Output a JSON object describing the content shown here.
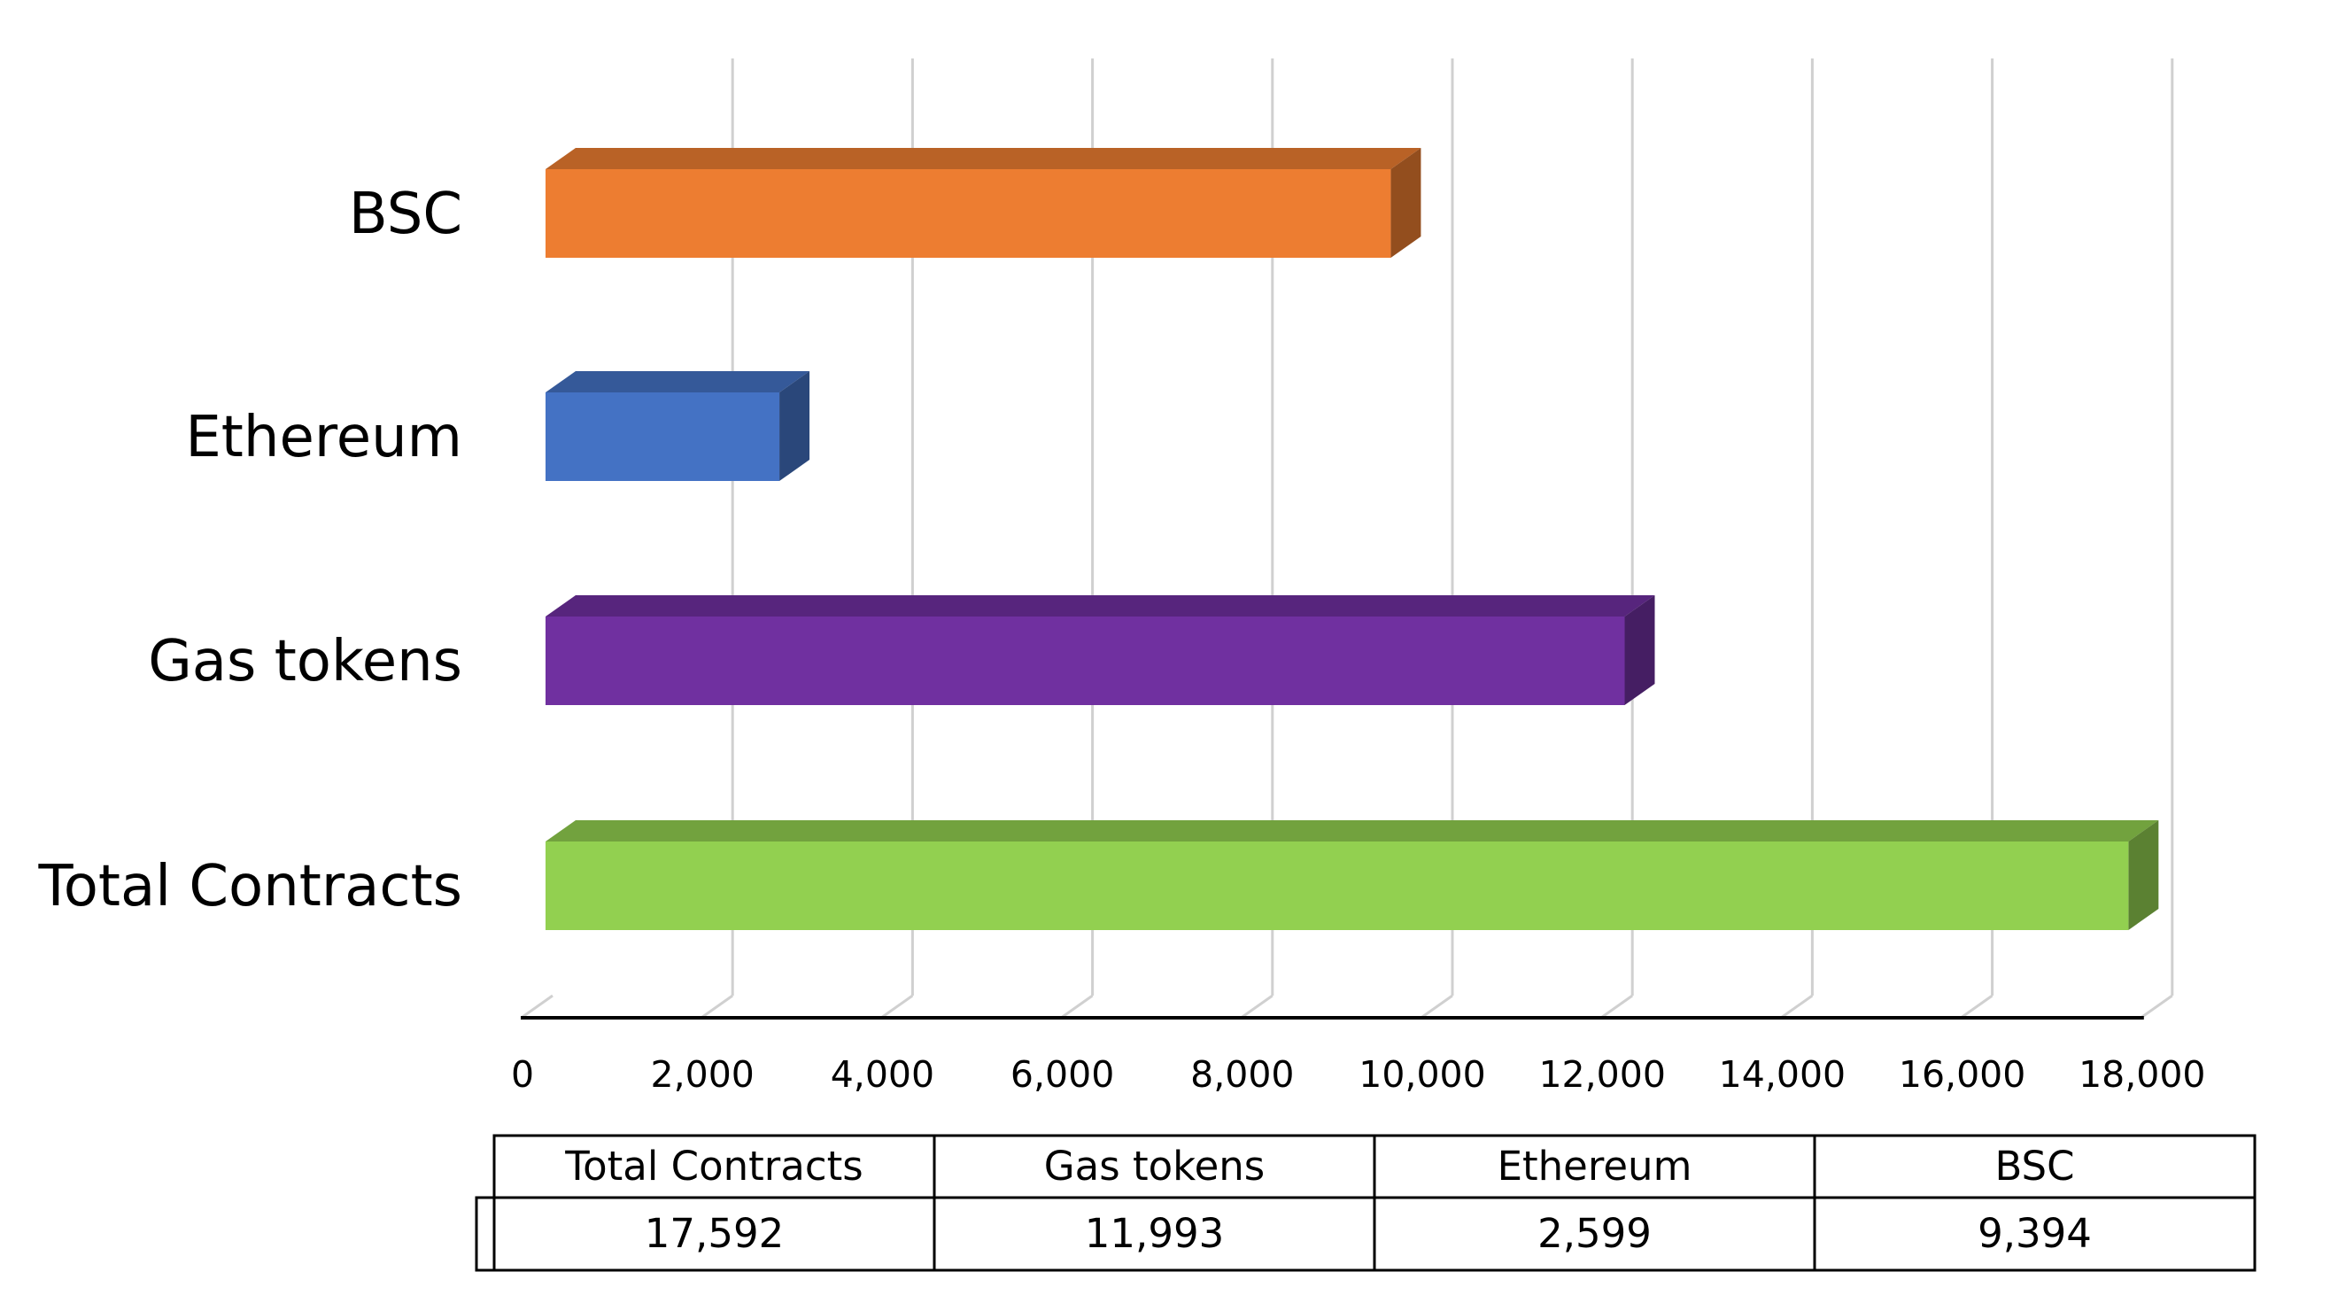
{
  "chart_data": {
    "type": "bar",
    "orientation": "horizontal",
    "style": "3d",
    "title": "",
    "xlabel": "",
    "ylabel": "",
    "categories": [
      "BSC",
      "Ethereum",
      "Gas tokens",
      "Total Contracts"
    ],
    "values": [
      9394,
      2599,
      11993,
      17592
    ],
    "colors": [
      "#ED7D31",
      "#4472C4",
      "#7030A0",
      "#92D050"
    ],
    "xlim": [
      0,
      18000
    ],
    "x_ticks": [
      0,
      2000,
      4000,
      6000,
      8000,
      10000,
      12000,
      14000,
      16000,
      18000
    ],
    "x_tick_labels": [
      "0",
      "2,000",
      "4,000",
      "6,000",
      "8,000",
      "10,000",
      "12,000",
      "14,000",
      "16,000",
      "18,000"
    ],
    "grid": true,
    "legend": "none",
    "data_table": {
      "headers": [
        "Total Contracts",
        "Gas tokens",
        "Ethereum",
        "BSC"
      ],
      "values": [
        "17,592",
        "11,993",
        "2,599",
        "9,394"
      ]
    }
  }
}
